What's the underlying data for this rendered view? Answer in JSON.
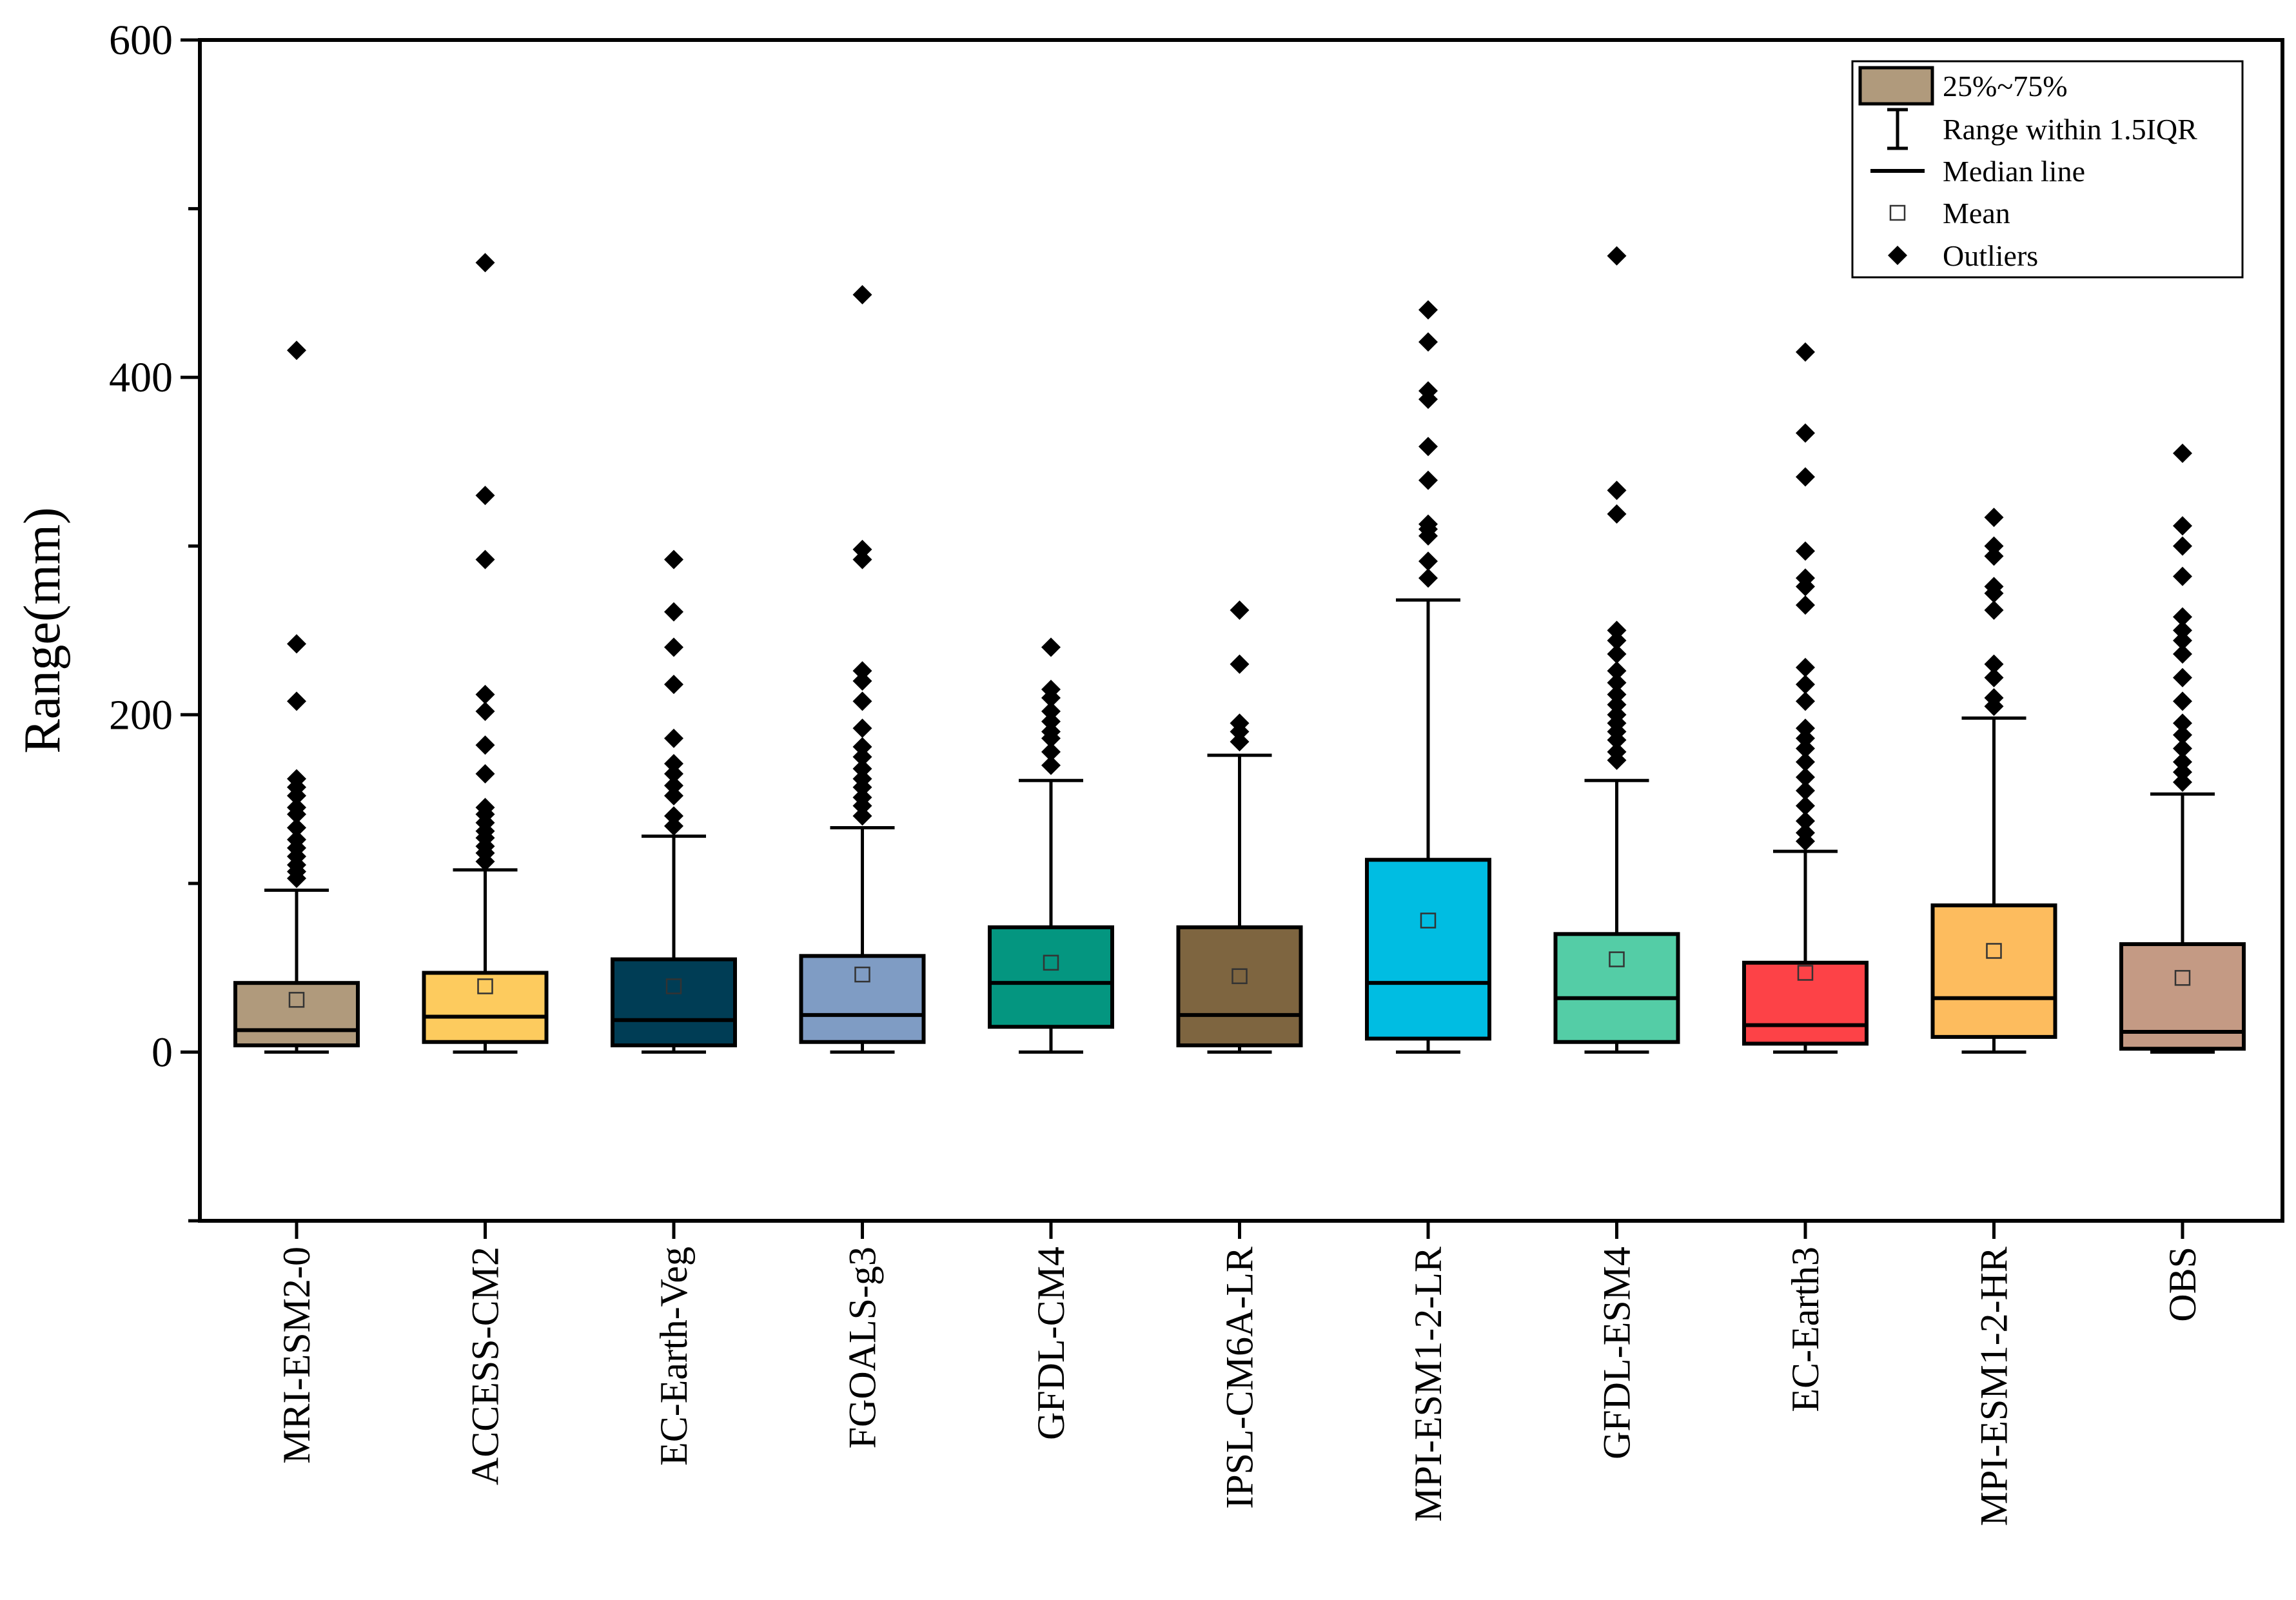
{
  "chart_data": {
    "type": "box",
    "ylabel": "Range(mm)",
    "ylim": [
      -100,
      600
    ],
    "yticks": [
      0,
      200,
      400,
      600
    ],
    "grid": false,
    "legend_position": "top-right",
    "legend": {
      "box": "25%~75%",
      "whisker": "Range within 1.5IQR",
      "median": "Median line",
      "mean": "Mean",
      "outliers": "Outliers"
    },
    "categories": [
      "MRI-ESM2-0",
      "ACCESS-CM2",
      "EC-Earth-Veg",
      "FGOALS-g3",
      "GFDL-CM4",
      "IPSL-CM6A-LR",
      "MPI-ESM1-2-LR",
      "GFDL-ESM4",
      "EC-Earth3",
      "MPI-ESM1-2-HR",
      "OBS"
    ],
    "colors": [
      "#b09a7c",
      "#fdcb5e",
      "#003d55",
      "#7f9cc4",
      "#049680",
      "#7e6540",
      "#00bde2",
      "#54cda6",
      "#fd4247",
      "#fdbc5e",
      "#c49a84"
    ],
    "boxes": [
      {
        "min": 0,
        "q1": 4,
        "median": 13,
        "q3": 41,
        "whisker_high": 96,
        "mean": 31,
        "outliers": [
          103,
          107,
          111,
          116,
          121,
          126,
          133,
          141,
          145,
          152,
          157,
          162,
          208,
          242,
          416
        ]
      },
      {
        "min": 0,
        "q1": 6,
        "median": 21,
        "q3": 47,
        "whisker_high": 108,
        "mean": 39,
        "outliers": [
          113,
          118,
          122,
          127,
          131,
          136,
          141,
          145,
          165,
          182,
          202,
          212,
          292,
          330,
          468
        ]
      },
      {
        "min": 0,
        "q1": 4,
        "median": 19,
        "q3": 55,
        "whisker_high": 128,
        "mean": 39,
        "outliers": [
          134,
          140,
          152,
          158,
          165,
          171,
          186,
          218,
          240,
          261,
          292
        ]
      },
      {
        "min": 0,
        "q1": 6,
        "median": 22,
        "q3": 57,
        "whisker_high": 133,
        "mean": 46,
        "outliers": [
          140,
          146,
          151,
          157,
          162,
          168,
          175,
          181,
          192,
          208,
          220,
          226,
          292,
          298,
          449
        ]
      },
      {
        "min": 0,
        "q1": 15,
        "median": 41,
        "q3": 74,
        "whisker_high": 161,
        "mean": 53,
        "outliers": [
          170,
          178,
          186,
          190,
          196,
          202,
          210,
          215,
          240
        ]
      },
      {
        "min": 0,
        "q1": 4,
        "median": 22,
        "q3": 74,
        "whisker_high": 176,
        "mean": 45,
        "outliers": [
          184,
          190,
          195,
          230,
          262
        ]
      },
      {
        "min": 0,
        "q1": 8,
        "median": 41,
        "q3": 114,
        "whisker_high": 268,
        "mean": 78,
        "outliers": [
          281,
          291,
          306,
          310,
          313,
          339,
          359,
          387,
          392,
          421,
          440
        ]
      },
      {
        "min": 0,
        "q1": 6,
        "median": 32,
        "q3": 70,
        "whisker_high": 161,
        "mean": 55,
        "outliers": [
          173,
          178,
          185,
          190,
          195,
          200,
          206,
          212,
          219,
          226,
          236,
          244,
          250,
          319,
          333,
          472
        ]
      },
      {
        "min": 0,
        "q1": 5,
        "median": 16,
        "q3": 53,
        "whisker_high": 119,
        "mean": 47,
        "outliers": [
          125,
          130,
          137,
          146,
          155,
          163,
          172,
          180,
          186,
          192,
          208,
          218,
          228,
          265,
          276,
          281,
          297,
          341,
          367,
          415
        ]
      },
      {
        "min": 0,
        "q1": 9,
        "median": 32,
        "q3": 87,
        "whisker_high": 198,
        "mean": 60,
        "outliers": [
          205,
          210,
          222,
          230,
          262,
          272,
          276,
          294,
          300,
          317
        ]
      },
      {
        "min": 0,
        "q1": 2,
        "median": 12,
        "q3": 64,
        "whisker_high": 153,
        "mean": 44,
        "outliers": [
          160,
          166,
          172,
          180,
          188,
          195,
          208,
          222,
          236,
          244,
          250,
          258,
          282,
          300,
          312,
          355
        ]
      }
    ]
  }
}
